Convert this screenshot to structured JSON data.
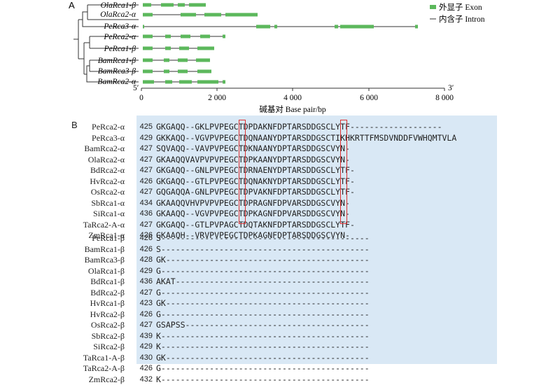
{
  "panel_a": {
    "label": "A",
    "genes": [
      "OlaRca1-β",
      "OlaRca2-α",
      "PeRca3-α",
      "PeRca2-α",
      "PeRca1-β",
      "BamRca1-β",
      "BamRca3-β",
      "BamRca2-α"
    ],
    "legend": {
      "exon": "外显子  Exon",
      "intron": "内含子  Intron"
    },
    "axis": {
      "ticks": [
        "0",
        "2 000",
        "4 000",
        "6 000",
        "8 000"
      ],
      "label": "碱基对 Base pair/bp",
      "left_end": "5′",
      "right_end": "3′"
    },
    "colors": {
      "exon": "#5cb85c",
      "line": "#333333"
    }
  },
  "panel_b": {
    "label": "B",
    "alpha_rows": [
      {
        "name": "PeRca2-α",
        "num": "425",
        "seq": "GKGAQQ--GKLPVPEGCTDPDAKNFDPTARSDDGSCLYTF-------------------"
      },
      {
        "name": "PeRca3-α",
        "num": "429",
        "seq": "GKKAQQ--VGVPVPEGCTDQNAANYDPTARSDDGSCTIKHKRTTFMSDVNDDFVWHQMTVLA"
      },
      {
        "name": "BamRca2-α",
        "num": "427",
        "seq": "SQVAQQ--VAVPVPEGCTDKNAANYDPTARSDDGSCVYN-"
      },
      {
        "name": "OlaRca2-α",
        "num": "427",
        "seq": "GKAAQQVAVPVPVPEGCTDPKAANYDPTARSDDGSCVYN-"
      },
      {
        "name": "BdRca2-α",
        "num": "427",
        "seq": "GKGAQQ--GNLPVPEGCTDRNAENYDPTARSDDGSCLYTF-"
      },
      {
        "name": "HvRca2-α",
        "num": "426",
        "seq": "GKGAQQ--GTLPVPEGCTDQNAKNYDPTARSDDGSCLYTF-"
      },
      {
        "name": "OsRca2-α",
        "num": "427",
        "seq": "GQGAQQA-GNLPVPEGCTDPVAKNFDPTARSDDGSCLYTF-"
      },
      {
        "name": "SbRca1-α",
        "num": "434",
        "seq": "GKAAQQVHVPVPVPEGCTDPRAGNFDPVARSDDGSCVYN-"
      },
      {
        "name": "SiRca1-α",
        "num": "436",
        "seq": "GKAAQQ--VGVPVPEGCTDPKAGNFDPVARSDDGSCVYN-"
      },
      {
        "name": "TaRca2-A-α",
        "num": "427",
        "seq": "GKGAQQ--GTLPVPAGCTDQTAKNFDPTARSDDGSCLYTF-"
      },
      {
        "name": "ZmRca1-α",
        "num": "426",
        "seq": "GKAAQH--VRVPVPEGCTDPKAGNFDPTARSDDGSCVYN-"
      }
    ],
    "beta_rows": [
      {
        "name": "PeRca1-β",
        "num": "426",
        "seq": "S-------------------------------------------"
      },
      {
        "name": "BamRca1-β",
        "num": "426",
        "seq": "S-------------------------------------------"
      },
      {
        "name": "BamRca3-β",
        "num": "428",
        "seq": "GK------------------------------------------"
      },
      {
        "name": "OlaRca1-β",
        "num": "429",
        "seq": "G-------------------------------------------"
      },
      {
        "name": "BdRca1-β",
        "num": "436",
        "seq": "AKAT----------------------------------------"
      },
      {
        "name": "BdRca2-β",
        "num": "427",
        "seq": "G-------------------------------------------"
      },
      {
        "name": "HvRca1-β",
        "num": "423",
        "seq": "GK------------------------------------------"
      },
      {
        "name": "HvRca2-β",
        "num": "426",
        "seq": "G-------------------------------------------"
      },
      {
        "name": "OsRca2-β",
        "num": "427",
        "seq": "GSAPSS--------------------------------------"
      },
      {
        "name": "SbRca2-β",
        "num": "439",
        "seq": "K-------------------------------------------"
      },
      {
        "name": "SiRca2-β",
        "num": "429",
        "seq": "K-------------------------------------------"
      },
      {
        "name": "TaRca1-A-β",
        "num": "430",
        "seq": "GK------------------------------------------"
      },
      {
        "name": "TaRca2-A-β",
        "num": "426",
        "seq": "G-------------------------------------------"
      },
      {
        "name": "ZmRca2-β",
        "num": "432",
        "seq": "K-------------------------------------------"
      }
    ]
  }
}
